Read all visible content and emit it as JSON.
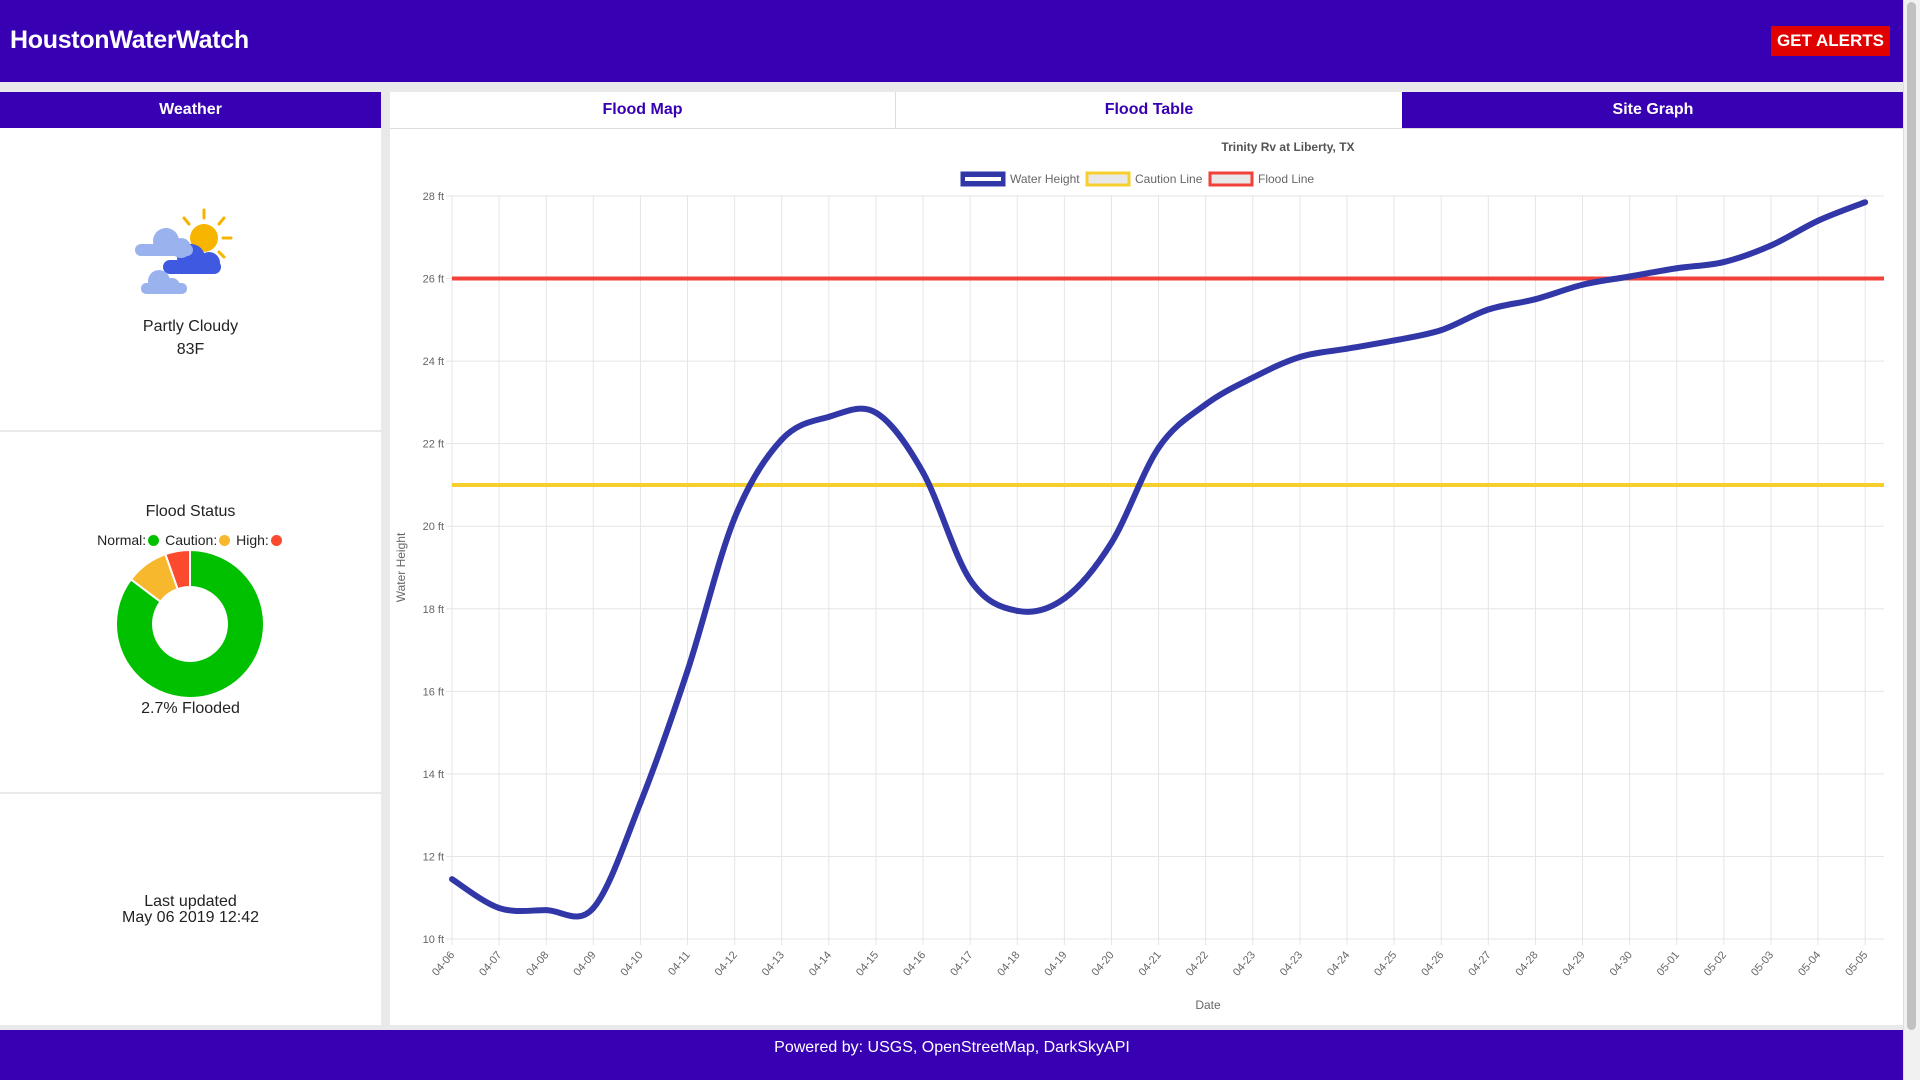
{
  "app": {
    "title": "HoustonWaterWatch",
    "alerts_label": "GET ALERTS"
  },
  "tabs": [
    {
      "label": "Weather"
    },
    {
      "label": "Flood Map"
    },
    {
      "label": "Flood Table"
    },
    {
      "label": "Site Graph"
    }
  ],
  "weather": {
    "icon": "partly-cloudy-icon",
    "description": "Partly Cloudy",
    "temperature": "83F"
  },
  "flood_status": {
    "title": "Flood Status",
    "legend": [
      {
        "label": "Normal:",
        "color": "#00c000"
      },
      {
        "label": "Caution:",
        "color": "#f7b82e"
      },
      {
        "label": "High:",
        "color": "#fb4a2e"
      }
    ],
    "donut": {
      "normal": 0.853,
      "caution": 0.093,
      "high": 0.054
    },
    "flooded_text": "2.7% Flooded"
  },
  "updated": {
    "label": "Last updated",
    "time": "May 06 2019 12:42"
  },
  "footer": {
    "text": "Powered by: USGS, OpenStreetMap, DarkSkyAPI"
  },
  "colors": {
    "brand": "#3700b3",
    "alert": "#e00000",
    "water": "#3237a8",
    "caution": "#f7cf2c",
    "flood": "#f2413a"
  },
  "chart_data": {
    "type": "line",
    "title": "Trinity Rv at Liberty, TX",
    "xlabel": "Date",
    "ylabel": "Water Height",
    "ylim": [
      10,
      28
    ],
    "yticks": [
      "10 ft",
      "12 ft",
      "14 ft",
      "16 ft",
      "18 ft",
      "20 ft",
      "22 ft",
      "24 ft",
      "26 ft",
      "28 ft"
    ],
    "categories": [
      "04-06",
      "04-07",
      "04-08",
      "04-09",
      "04-10",
      "04-11",
      "04-12",
      "04-13",
      "04-14",
      "04-15",
      "04-16",
      "04-17",
      "04-18",
      "04-19",
      "04-20",
      "04-21",
      "04-22",
      "04-23",
      "04-23",
      "04-24",
      "04-25",
      "04-26",
      "04-27",
      "04-28",
      "04-29",
      "04-30",
      "05-01",
      "05-02",
      "05-03",
      "05-04",
      "05-05"
    ],
    "grid": true,
    "legend_position": "top",
    "series": [
      {
        "name": "Water Height",
        "color": "#3237a8",
        "values": [
          11.45,
          10.75,
          10.7,
          10.75,
          13.3,
          16.5,
          20.2,
          22.1,
          22.65,
          22.75,
          21.3,
          18.7,
          17.95,
          18.25,
          19.6,
          21.9,
          22.95,
          23.6,
          24.1,
          24.3,
          24.5,
          24.75,
          25.25,
          25.5,
          25.85,
          26.05,
          26.25,
          26.4,
          26.8,
          27.4,
          27.85
        ]
      },
      {
        "name": "Caution Line",
        "color": "#f7cf2c",
        "constant": 21
      },
      {
        "name": "Flood Line",
        "color": "#f2413a",
        "constant": 26
      }
    ]
  }
}
